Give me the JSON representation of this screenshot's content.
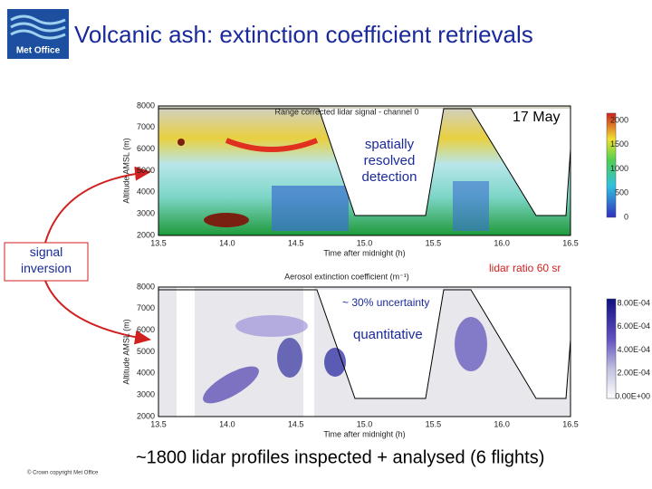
{
  "header": {
    "title": "Volcanic ash: extinction coefficient retrievals",
    "logo": "Met Office"
  },
  "panel_top": {
    "title": "Range corrected lidar signal - channel 0",
    "y_label": "Altitude AMSL (m)",
    "x_label": "Time after midnight (h)",
    "yticks": [
      "8000",
      "7000",
      "6000",
      "5000",
      "4000",
      "3000",
      "2000"
    ],
    "xticks": [
      "13.5",
      "14.0",
      "14.5",
      "15.0",
      "15.5",
      "16.0",
      "16.5"
    ],
    "colorbar_ticks": [
      "2000",
      "1500",
      "1000",
      "500",
      "0"
    ]
  },
  "panel_bottom": {
    "title": "Aerosol extinction coefficient (m⁻¹)",
    "y_label": "Altitude AMSL (m)",
    "x_label": "Time after midnight (h)",
    "yticks": [
      "8000",
      "7000",
      "6000",
      "5000",
      "4000",
      "3000",
      "2000"
    ],
    "xticks": [
      "13.5",
      "14.0",
      "14.5",
      "15.0",
      "15.5",
      "16.0",
      "16.5"
    ],
    "colorbar_ticks": [
      "8.00E-04",
      "6.00E-04",
      "4.00E-04",
      "2.00E-04",
      "0.00E+00"
    ]
  },
  "annotations": {
    "detection": "spatially resolved detection",
    "date": "17 May",
    "inversion": "signal inversion",
    "lidar_ratio": "lidar ratio 60 sr",
    "uncertainty": "~ 30% uncertainty",
    "quantitative": "quantitative"
  },
  "footer": {
    "summary": "~1800 lidar profiles inspected + analysed (6 flights)",
    "copyright": "© Crown copyright   Met Office"
  }
}
